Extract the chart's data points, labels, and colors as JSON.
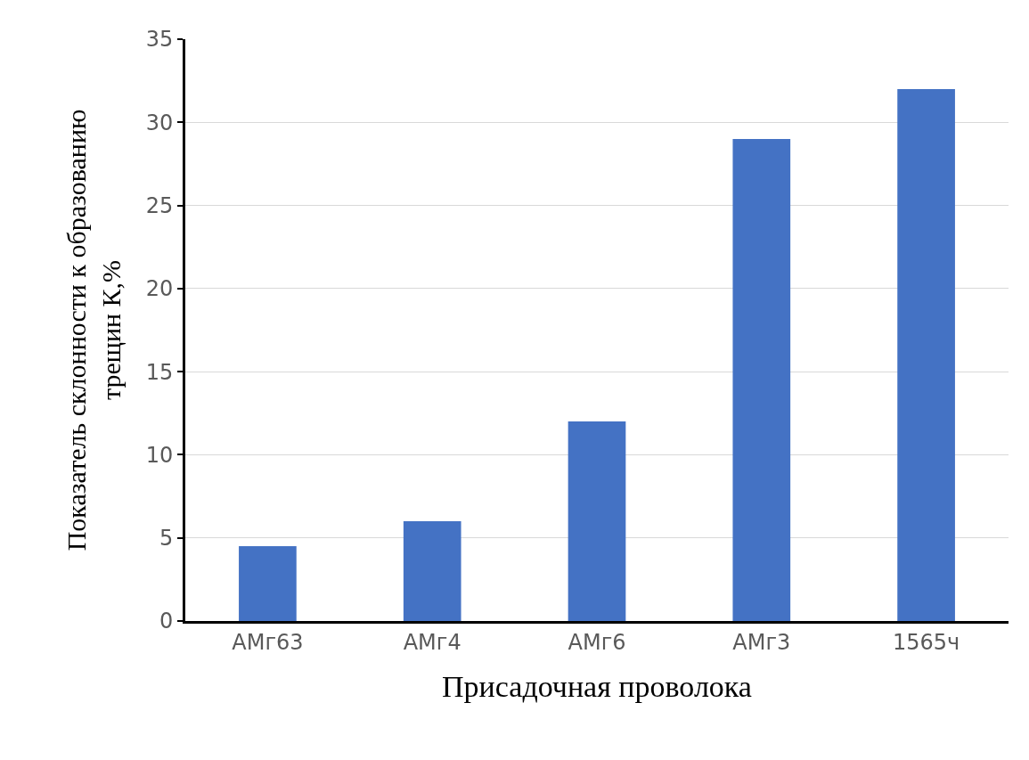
{
  "chart_data": {
    "type": "bar",
    "xlabel": "Присадочная проволока",
    "ylabel": "Показатель склонности к образованию трещин К,%",
    "categories": [
      "АМг63",
      "АМг4",
      "АМг6",
      "АМг3",
      "1565ч"
    ],
    "values": [
      4.5,
      6,
      12,
      29,
      32
    ],
    "color": "#4472c4",
    "ylim": [
      0,
      35
    ],
    "yticks": [
      0,
      5,
      10,
      15,
      20,
      25,
      30,
      35
    ],
    "grid": "y"
  }
}
